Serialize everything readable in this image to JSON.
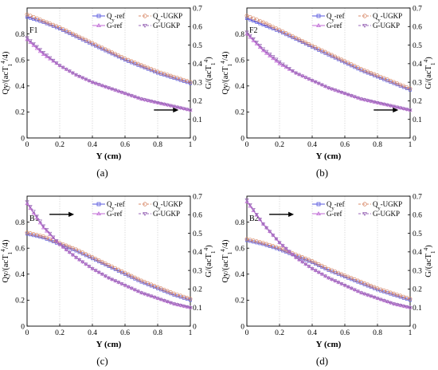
{
  "colors": {
    "ref": "#5a5adf",
    "ugkp": "#d98c6c",
    "g_ref": "#c06ad6",
    "g_ugkp": "#9b6ab8",
    "grid": "#c8c8c8",
    "axis": "#000000"
  },
  "chart_data": [
    {
      "type": "line",
      "panel_label": "(a)",
      "case_label": "F1",
      "xlabel": "Y (cm)",
      "ylabel_left": "Qy/(acT_1^4/4)",
      "ylabel_right": "G/(acT_1^4)",
      "xlim": [
        0,
        1
      ],
      "ylim_left": [
        0,
        1
      ],
      "ylim_right": [
        0,
        0.7
      ],
      "x_ticks": [
        "0",
        "0.2",
        "0.4",
        "0.6",
        "0.8",
        "1"
      ],
      "yl_ticks": [
        "0",
        "0.2",
        "0.4",
        "0.6",
        "0.8"
      ],
      "yr_ticks": [
        "0",
        "0.1",
        "0.2",
        "0.3",
        "0.4",
        "0.5",
        "0.6",
        "0.7"
      ],
      "legend": [
        "Q_y-ref",
        "Q_y-UGKP",
        "G-ref",
        "G-UGKP"
      ],
      "arrow": {
        "direction": "right",
        "at": [
          0.86,
          0.215
        ]
      },
      "x": [
        0,
        0.1,
        0.2,
        0.3,
        0.4,
        0.5,
        0.6,
        0.7,
        0.8,
        0.9,
        1.0
      ],
      "series": [
        {
          "name": "Q_y-ref",
          "axis": "left",
          "values": [
            0.93,
            0.89,
            0.84,
            0.78,
            0.72,
            0.66,
            0.6,
            0.55,
            0.5,
            0.46,
            0.42
          ]
        },
        {
          "name": "Q_y-UGKP",
          "axis": "left",
          "values": [
            0.95,
            0.9,
            0.85,
            0.79,
            0.73,
            0.67,
            0.61,
            0.56,
            0.51,
            0.47,
            0.43
          ]
        },
        {
          "name": "G-ref",
          "axis": "right",
          "values": [
            0.53,
            0.45,
            0.39,
            0.34,
            0.3,
            0.27,
            0.24,
            0.21,
            0.19,
            0.17,
            0.15
          ]
        },
        {
          "name": "G-UGKP",
          "axis": "right",
          "values": [
            0.54,
            0.46,
            0.39,
            0.34,
            0.3,
            0.27,
            0.24,
            0.21,
            0.19,
            0.17,
            0.15
          ]
        }
      ]
    },
    {
      "type": "line",
      "panel_label": "(b)",
      "case_label": "F2",
      "xlabel": "Y (cm)",
      "ylabel_left": "Qy/(acT_1^4/4)",
      "ylabel_right": "G/(acT_1^4)",
      "xlim": [
        0,
        1
      ],
      "ylim_left": [
        0,
        1
      ],
      "ylim_right": [
        0,
        0.7
      ],
      "x_ticks": [
        "0",
        "0.2",
        "0.4",
        "0.6",
        "0.8",
        "1"
      ],
      "yl_ticks": [
        "0",
        "0.2",
        "0.4",
        "0.6",
        "0.8"
      ],
      "yr_ticks": [
        "0",
        "0.1",
        "0.2",
        "0.3",
        "0.4",
        "0.5",
        "0.6",
        "0.7"
      ],
      "legend": [
        "Q_y-ref",
        "Q_y-UGKP",
        "G-ref",
        "G-UGKP"
      ],
      "arrow": {
        "direction": "right",
        "at": [
          0.86,
          0.215
        ]
      },
      "x": [
        0,
        0.1,
        0.2,
        0.3,
        0.4,
        0.5,
        0.6,
        0.7,
        0.8,
        0.9,
        1.0
      ],
      "series": [
        {
          "name": "Q_y-ref",
          "axis": "left",
          "values": [
            0.92,
            0.87,
            0.82,
            0.76,
            0.7,
            0.64,
            0.58,
            0.52,
            0.47,
            0.42,
            0.37
          ]
        },
        {
          "name": "Q_y-UGKP",
          "axis": "left",
          "values": [
            0.94,
            0.89,
            0.83,
            0.77,
            0.71,
            0.65,
            0.59,
            0.53,
            0.48,
            0.43,
            0.38
          ]
        },
        {
          "name": "G-ref",
          "axis": "right",
          "values": [
            0.56,
            0.47,
            0.4,
            0.35,
            0.31,
            0.27,
            0.24,
            0.21,
            0.19,
            0.17,
            0.15
          ]
        },
        {
          "name": "G-UGKP",
          "axis": "right",
          "values": [
            0.57,
            0.48,
            0.41,
            0.35,
            0.31,
            0.27,
            0.24,
            0.21,
            0.19,
            0.17,
            0.15
          ]
        }
      ]
    },
    {
      "type": "line",
      "panel_label": "(c)",
      "case_label": "B1",
      "xlabel": "Y (cm)",
      "ylabel_left": "Qy/(acT_1^4/4)",
      "ylabel_right": "G/(acT_1^4)",
      "xlim": [
        0,
        1
      ],
      "ylim_left": [
        0,
        1
      ],
      "ylim_right": [
        0,
        0.7
      ],
      "x_ticks": [
        "0",
        "0.2",
        "0.4",
        "0.6",
        "0.8",
        "1"
      ],
      "yl_ticks": [
        "0",
        "0.2",
        "0.4",
        "0.6",
        "0.8"
      ],
      "yr_ticks": [
        "0",
        "0.1",
        "0.2",
        "0.3",
        "0.4",
        "0.5",
        "0.6",
        "0.7"
      ],
      "legend": [
        "Q_y-ref",
        "Q_y-UGKP",
        "G-ref",
        "G-UGKP"
      ],
      "arrow": {
        "direction": "right",
        "at": [
          0.22,
          0.86
        ]
      },
      "x": [
        0,
        0.1,
        0.2,
        0.3,
        0.4,
        0.5,
        0.6,
        0.7,
        0.8,
        0.9,
        1.0
      ],
      "series": [
        {
          "name": "Q_y-ref",
          "axis": "left",
          "values": [
            0.71,
            0.68,
            0.63,
            0.58,
            0.52,
            0.46,
            0.4,
            0.34,
            0.29,
            0.24,
            0.2
          ]
        },
        {
          "name": "Q_y-UGKP",
          "axis": "left",
          "values": [
            0.72,
            0.69,
            0.64,
            0.59,
            0.53,
            0.47,
            0.41,
            0.35,
            0.3,
            0.25,
            0.21
          ]
        },
        {
          "name": "G-ref",
          "axis": "right",
          "values": [
            0.66,
            0.53,
            0.44,
            0.37,
            0.31,
            0.26,
            0.22,
            0.18,
            0.15,
            0.12,
            0.1
          ]
        },
        {
          "name": "G-UGKP",
          "axis": "right",
          "values": [
            0.67,
            0.54,
            0.44,
            0.37,
            0.31,
            0.26,
            0.22,
            0.18,
            0.15,
            0.12,
            0.1
          ]
        }
      ]
    },
    {
      "type": "line",
      "panel_label": "(d)",
      "case_label": "B2",
      "xlabel": "Y (cm)",
      "ylabel_left": "Qy/(acT_1^4/4)",
      "ylabel_right": "G/(acT_1^4)",
      "xlim": [
        0,
        1
      ],
      "ylim_left": [
        0,
        1
      ],
      "ylim_right": [
        0,
        0.7
      ],
      "x_ticks": [
        "0",
        "0.2",
        "0.4",
        "0.6",
        "0.8",
        "1"
      ],
      "yl_ticks": [
        "0",
        "0.2",
        "0.4",
        "0.6",
        "0.8"
      ],
      "yr_ticks": [
        "0",
        "0.1",
        "0.2",
        "0.3",
        "0.4",
        "0.5",
        "0.6",
        "0.7"
      ],
      "legend": [
        "Q_y-ref",
        "Q_y-UGKP",
        "G-ref",
        "G-UGKP"
      ],
      "arrow": {
        "direction": "right",
        "at": [
          0.22,
          0.86
        ]
      },
      "x": [
        0,
        0.1,
        0.2,
        0.3,
        0.4,
        0.5,
        0.6,
        0.7,
        0.8,
        0.9,
        1.0
      ],
      "series": [
        {
          "name": "Q_y-ref",
          "axis": "left",
          "values": [
            0.66,
            0.63,
            0.59,
            0.54,
            0.49,
            0.43,
            0.38,
            0.33,
            0.28,
            0.24,
            0.2
          ]
        },
        {
          "name": "Q_y-UGKP",
          "axis": "left",
          "values": [
            0.67,
            0.64,
            0.6,
            0.55,
            0.5,
            0.44,
            0.39,
            0.34,
            0.29,
            0.25,
            0.21
          ]
        },
        {
          "name": "G-ref",
          "axis": "right",
          "values": [
            0.67,
            0.55,
            0.45,
            0.37,
            0.31,
            0.26,
            0.22,
            0.18,
            0.15,
            0.12,
            0.1
          ]
        },
        {
          "name": "G-UGKP",
          "axis": "right",
          "values": [
            0.68,
            0.55,
            0.45,
            0.37,
            0.31,
            0.26,
            0.22,
            0.18,
            0.15,
            0.12,
            0.1
          ]
        }
      ]
    }
  ]
}
